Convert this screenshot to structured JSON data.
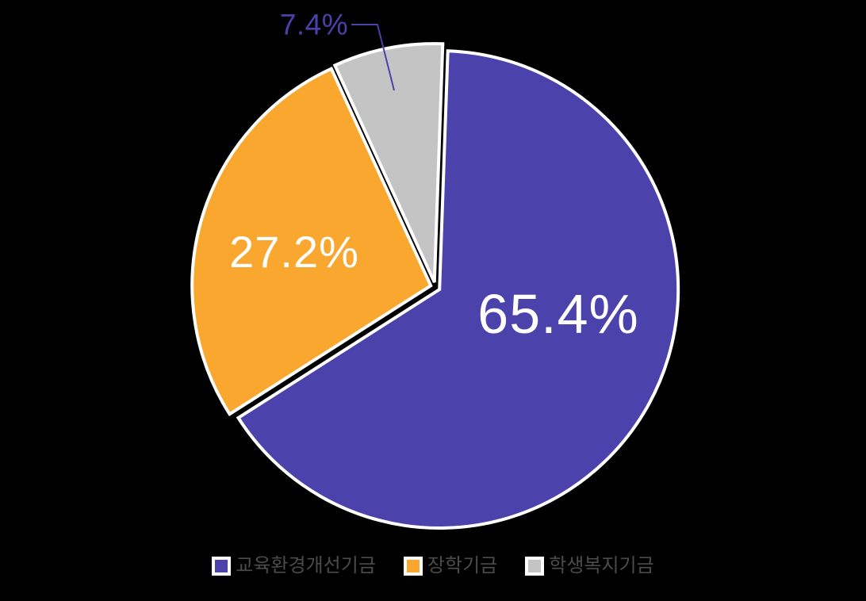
{
  "chart_data": {
    "type": "pie",
    "title": "",
    "slices": [
      {
        "label": "교육환경개선기금",
        "value": 65.4,
        "pct_label": "65.4%",
        "color": "#4b42ac"
      },
      {
        "label": "장학기금",
        "value": 27.2,
        "pct_label": "27.2%",
        "color": "#f9a72e"
      },
      {
        "label": "학생복지기금",
        "value": 7.4,
        "pct_label": "7.4%",
        "color": "#c4c4c4"
      }
    ],
    "start_angle_deg": 2,
    "direction": "clockwise",
    "legend_position": "bottom",
    "label_style": {
      "inside_color": "#ffffff",
      "outside_color": "#4a41ab"
    }
  },
  "colors": {
    "background": "#000000",
    "slice_border": "#ffffff",
    "leader_line": "#4a41ab",
    "legend_text": "#4b4b4b"
  }
}
